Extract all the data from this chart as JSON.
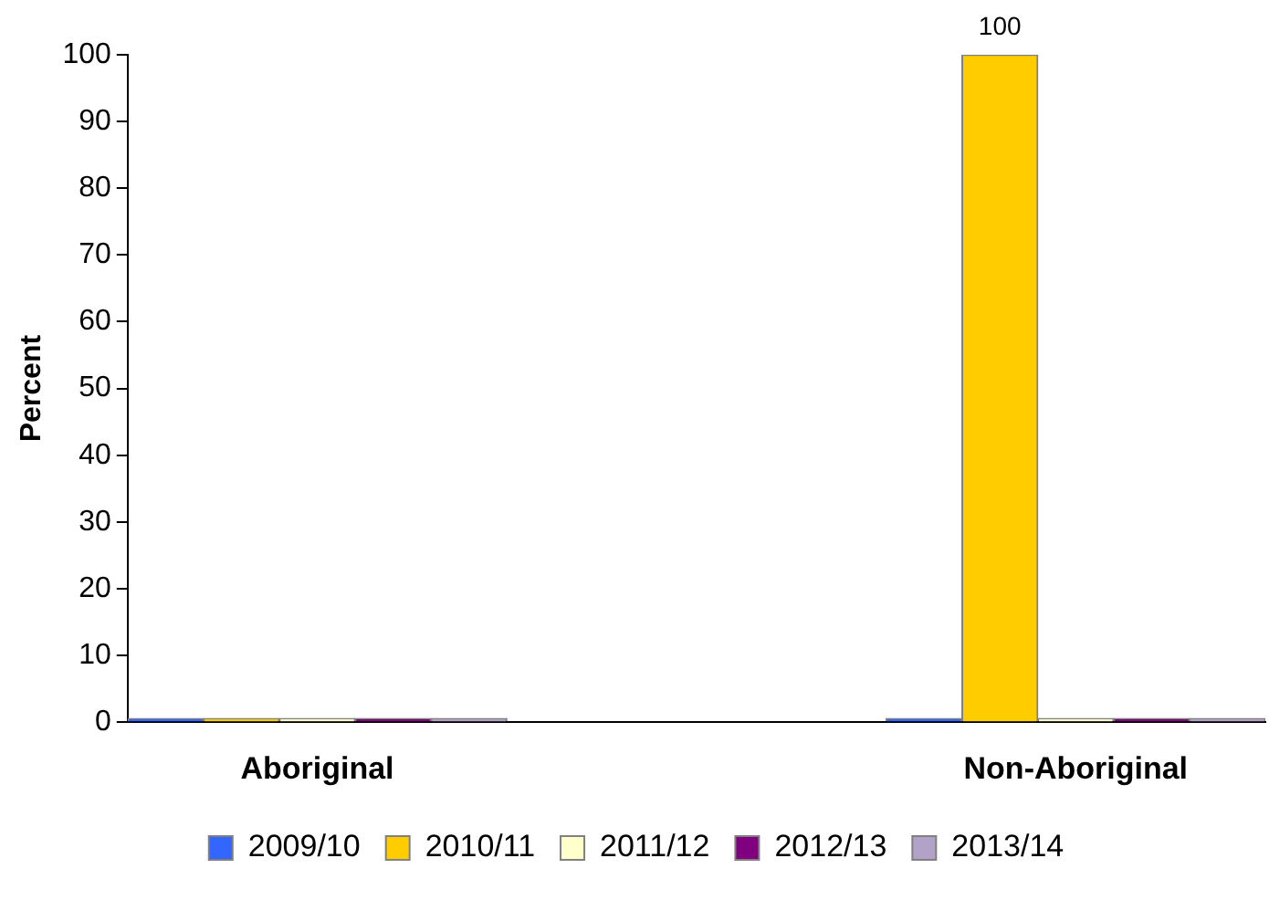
{
  "chart_data": {
    "type": "bar",
    "ylabel": "Percent",
    "categories": [
      "Aboriginal",
      null,
      "Non-Aboriginal"
    ],
    "series": [
      {
        "name": "2009/10",
        "color": "#3366ff",
        "values": [
          0,
          null,
          0
        ]
      },
      {
        "name": "2010/11",
        "color": "#ffcc00",
        "values": [
          0,
          null,
          100
        ],
        "value_labels": [
          null,
          null,
          "100"
        ]
      },
      {
        "name": "2011/12",
        "color": "#ffffcc",
        "values": [
          0,
          null,
          0
        ]
      },
      {
        "name": "2012/13",
        "color": "#800080",
        "values": [
          0,
          null,
          0
        ]
      },
      {
        "name": "2013/14",
        "color": "#b3a2c7",
        "values": [
          0,
          null,
          0
        ]
      }
    ],
    "ylim": [
      0,
      100
    ],
    "yticks": [
      0,
      10,
      20,
      30,
      40,
      50,
      60,
      70,
      80,
      90,
      100
    ],
    "grid": false,
    "legend": "bottom"
  }
}
